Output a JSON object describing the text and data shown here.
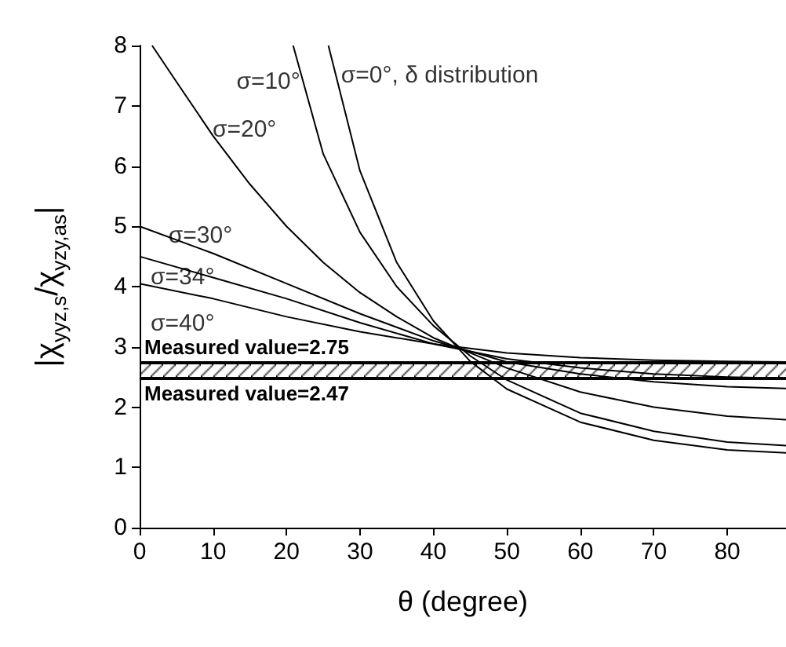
{
  "chart_data": {
    "type": "line",
    "xlabel": "θ (degree)",
    "ylabel": "|χ$_{yyz,s}$/χ$_{yzy,as}$|",
    "xlim": [
      0,
      88
    ],
    "xticks": [
      0,
      10,
      20,
      30,
      40,
      50,
      60,
      70,
      80
    ],
    "ylim": [
      0,
      8
    ],
    "yticks": [
      0,
      1,
      2,
      3,
      4,
      5,
      6,
      7,
      8
    ],
    "grid": false,
    "marker": "none",
    "line_style": "solid",
    "series": [
      {
        "color": "#000000",
        "x": [
          25.7,
          30,
          35,
          40,
          45,
          50,
          60,
          70,
          80,
          88
        ],
        "values": [
          8,
          5.92,
          4.4,
          3.43,
          2.76,
          2.3,
          1.75,
          1.45,
          1.29,
          1.24
        ]
      },
      {
        "color": "#000000",
        "x": [
          20.9,
          25,
          30,
          35,
          40,
          45,
          50,
          60,
          70,
          80,
          88
        ],
        "values": [
          8,
          6.2,
          4.9,
          4.0,
          3.35,
          2.85,
          2.45,
          1.9,
          1.6,
          1.42,
          1.36
        ]
      },
      {
        "color": "#000000",
        "x": [
          1.7,
          5,
          10,
          15,
          20,
          25,
          30,
          35,
          40,
          45,
          50,
          60,
          70,
          80,
          88
        ],
        "values": [
          8,
          7.4,
          6.5,
          5.7,
          5.0,
          4.4,
          3.9,
          3.5,
          3.15,
          2.9,
          2.65,
          2.25,
          2.0,
          1.85,
          1.79
        ]
      },
      {
        "color": "#000000",
        "x": [
          0,
          10,
          20,
          30,
          40,
          50,
          60,
          70,
          80,
          88
        ],
        "values": [
          5.0,
          4.55,
          4.05,
          3.55,
          3.1,
          2.75,
          2.55,
          2.42,
          2.34,
          2.31
        ]
      },
      {
        "color": "#000000",
        "x": [
          0,
          10,
          20,
          30,
          40,
          50,
          60,
          70,
          80,
          88
        ],
        "values": [
          4.5,
          4.15,
          3.8,
          3.4,
          3.05,
          2.8,
          2.65,
          2.55,
          2.5,
          2.48
        ]
      },
      {
        "color": "#000000",
        "x": [
          0,
          10,
          20,
          30,
          40,
          50,
          60,
          70,
          80,
          88
        ],
        "values": [
          4.05,
          3.8,
          3.5,
          3.25,
          3.05,
          2.9,
          2.82,
          2.78,
          2.76,
          2.75
        ]
      }
    ],
    "ref_lines": [
      {
        "axis": "y",
        "value": 2.75,
        "label": "Measured value=2.75"
      },
      {
        "axis": "y",
        "value": 2.47,
        "label": "Measured value=2.47"
      }
    ],
    "bands": [
      {
        "axis": "y",
        "from": 2.47,
        "to": 2.75
      }
    ],
    "annotations": [
      {
        "text": "σ=0°, δ distribution",
        "x": 27,
        "y": 7.5
      },
      {
        "text": "σ=10°",
        "x": 22.3,
        "y": 7.4
      },
      {
        "text": "σ=20°",
        "x": 9.5,
        "y": 6.6
      },
      {
        "text": "σ=30°",
        "x": 3.5,
        "y": 4.85
      },
      {
        "text": "σ=34°",
        "x": 1.5,
        "y": 4.45
      },
      {
        "text": "σ=40°",
        "x": 1.5,
        "y": 4.0
      }
    ]
  }
}
